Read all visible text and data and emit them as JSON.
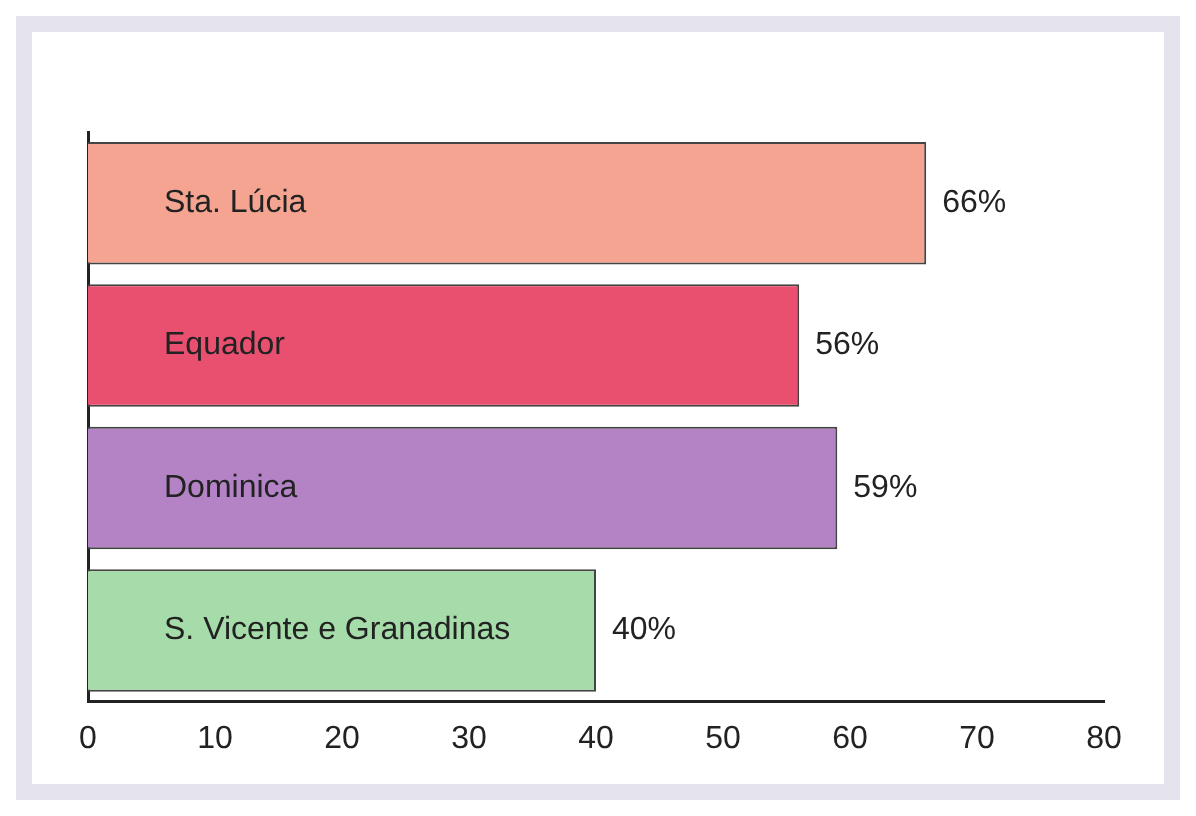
{
  "chart_data": {
    "type": "bar",
    "orientation": "horizontal",
    "categories": [
      "Sta. Lúcia",
      "Equador",
      "Dominica",
      "S. Vicente e Granadinas"
    ],
    "values": [
      66,
      56,
      59,
      40
    ],
    "colors": [
      "#f4a490",
      "#e9506f",
      "#b383c6",
      "#a6dca9"
    ],
    "value_labels": [
      "66%",
      "56%",
      "59%",
      "40%"
    ],
    "xlim": [
      0,
      80
    ],
    "xticks": [
      0,
      10,
      20,
      30,
      40,
      50,
      60,
      70,
      80
    ],
    "tick_labels": "x",
    "grid": false,
    "legend": false
  }
}
